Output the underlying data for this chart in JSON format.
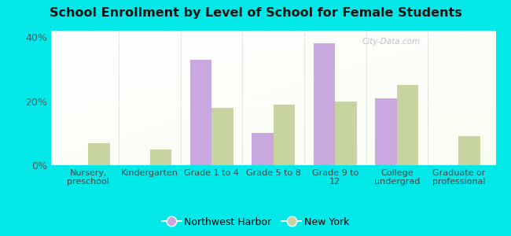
{
  "title": "School Enrollment by Level of School for Female Students",
  "categories": [
    "Nursery,\npreschool",
    "Kindergarten",
    "Grade 1 to 4",
    "Grade 5 to 8",
    "Grade 9 to\n12",
    "College\nundergrad",
    "Graduate or\nprofessional"
  ],
  "northwest_harbor": [
    0,
    0,
    33,
    10,
    38,
    21,
    0
  ],
  "new_york": [
    7,
    5,
    18,
    19,
    20,
    25,
    9
  ],
  "color_nh": "#c9a8e0",
  "color_ny": "#c8d4a0",
  "ylim": [
    0,
    42
  ],
  "yticks": [
    0,
    20,
    40
  ],
  "ytick_labels": [
    "0%",
    "20%",
    "40%"
  ],
  "background_outer": "#00e8e8",
  "bar_width": 0.35,
  "legend_nh": "Northwest Harbor",
  "legend_ny": "New York",
  "watermark": "City-Data.com"
}
